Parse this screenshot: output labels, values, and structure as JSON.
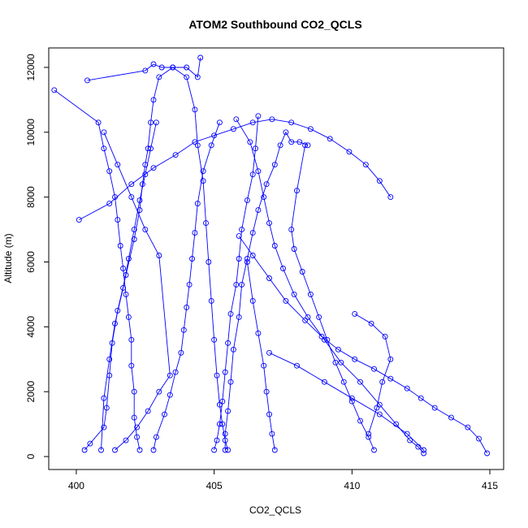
{
  "chart_data": {
    "type": "line",
    "title": "ATOM2 Southbound CO2_QCLS",
    "xlabel": "CO2_QCLS",
    "ylabel": "Altitude (m)",
    "xlim": [
      399,
      415.5
    ],
    "ylim": [
      -400,
      12600
    ],
    "x_ticks": [
      400,
      405,
      410,
      415
    ],
    "y_ticks": [
      0,
      2000,
      4000,
      6000,
      8000,
      10000,
      12000
    ],
    "markers": "open-circle",
    "color": "#0000ff",
    "series": [
      {
        "x": [
          400.3,
          400.5,
          401.0,
          401.1,
          401.2,
          401.3,
          401.5,
          401.8,
          402.1,
          402.3,
          402.4,
          402.5,
          402.6,
          402.7,
          402.8,
          403.0,
          403.5,
          404.0,
          404.4,
          404.5
        ],
        "y": [
          200,
          400,
          900,
          1500,
          2500,
          3500,
          4500,
          5600,
          6700,
          7600,
          8400,
          9000,
          9500,
          10300,
          11000,
          11700,
          12000,
          12000,
          11700,
          12300
        ]
      },
      {
        "x": [
          399.2,
          400.8,
          401.0,
          401.2,
          401.4,
          401.5,
          401.6,
          401.7,
          401.8,
          401.9,
          402.0,
          402.0,
          402.1,
          402.1,
          402.2,
          402.3
        ],
        "y": [
          11300,
          10300,
          9500,
          8800,
          8000,
          7300,
          6500,
          5800,
          5000,
          4300,
          3600,
          2800,
          2000,
          1200,
          600,
          200
        ]
      },
      {
        "x": [
          400.4,
          402.5,
          402.8,
          403.1,
          403.5,
          404.0,
          404.3,
          404.4,
          404.6,
          404.7,
          404.8,
          404.9,
          405.0,
          405.1,
          405.2,
          405.3,
          405.4,
          405.5
        ],
        "y": [
          11600,
          11900,
          12100,
          12000,
          12000,
          11700,
          10700,
          9600,
          8500,
          7200,
          6000,
          4800,
          3600,
          2500,
          1600,
          1000,
          500,
          200
        ]
      },
      {
        "x": [
          405.4,
          405.4,
          405.5,
          405.6,
          405.7,
          405.9,
          406.0,
          406.2,
          406.4,
          406.6,
          406.9,
          407.2,
          407.4,
          407.6,
          407.8,
          408.1,
          408.4
        ],
        "y": [
          200,
          700,
          1400,
          2300,
          3300,
          4300,
          5300,
          6100,
          6900,
          7600,
          8400,
          9000,
          9600,
          10000,
          9700,
          9700,
          9600
        ]
      },
      {
        "x": [
          408.3,
          408.0,
          407.8,
          407.9,
          408.2,
          408.5,
          408.8,
          409.1,
          409.4,
          409.7,
          410.0,
          410.3,
          410.6,
          410.8
        ],
        "y": [
          9600,
          8200,
          7000,
          6400,
          5700,
          5000,
          4300,
          3600,
          2900,
          2300,
          1700,
          1100,
          600,
          200
        ]
      },
      {
        "x": [
          405.8,
          406.3,
          406.6,
          406.8,
          407.0,
          407.2,
          407.5,
          407.9,
          408.4,
          409.0,
          409.6,
          410.3,
          411.0,
          411.6,
          412.1,
          412.4,
          412.6
        ],
        "y": [
          10400,
          9700,
          8800,
          8000,
          7200,
          6500,
          5800,
          5000,
          4300,
          3600,
          2900,
          2300,
          1600,
          1000,
          500,
          300,
          100
        ]
      },
      {
        "x": [
          406.6,
          406.5,
          406.4,
          406.2,
          406.0,
          405.9,
          405.8,
          405.6,
          405.5,
          405.4,
          405.3,
          405.2,
          405.1,
          405.0
        ],
        "y": [
          10500,
          9500,
          8700,
          7900,
          7000,
          6100,
          5300,
          4400,
          3500,
          2600,
          1700,
          1000,
          500,
          200
        ]
      },
      {
        "x": [
          405.2,
          404.9,
          404.6,
          404.4,
          404.3,
          404.2,
          404.1,
          404.0,
          403.9,
          403.8,
          403.6,
          403.4,
          403.2,
          402.9,
          402.8
        ],
        "y": [
          10300,
          9600,
          8800,
          7800,
          6900,
          6100,
          5300,
          4600,
          3900,
          3200,
          2600,
          1900,
          1300,
          600,
          200
        ]
      },
      {
        "x": [
          414.9,
          414.6,
          414.2,
          413.6,
          413.0,
          412.5,
          412.0,
          411.4,
          410.8,
          410.1,
          409.5,
          408.9,
          408.3,
          407.6,
          407.0,
          406.4,
          405.9
        ],
        "y": [
          100,
          550,
          900,
          1200,
          1500,
          1800,
          2100,
          2400,
          2700,
          3000,
          3300,
          3700,
          4200,
          4800,
          5500,
          6200,
          6800
        ]
      },
      {
        "x": [
          400.1,
          401.2,
          402.0,
          402.8,
          403.6,
          404.3,
          405.0,
          405.7,
          406.4,
          407.1,
          407.8,
          408.5,
          409.2,
          409.9,
          410.5,
          411.0,
          411.4
        ],
        "y": [
          7300,
          7800,
          8400,
          8900,
          9300,
          9700,
          9900,
          10100,
          10300,
          10400,
          10300,
          10100,
          9800,
          9400,
          9000,
          8500,
          8000
        ]
      },
      {
        "x": [
          407.0,
          408.0,
          409.0,
          410.0,
          411.0,
          412.0,
          412.6
        ],
        "y": [
          3200,
          2800,
          2300,
          1800,
          1300,
          700,
          200
        ]
      },
      {
        "x": [
          410.1,
          410.7,
          411.2,
          411.4,
          411.1,
          410.9,
          410.6
        ],
        "y": [
          4400,
          4100,
          3700,
          3000,
          2300,
          1500,
          700
        ]
      },
      {
        "x": [
          406.2,
          406.4,
          406.6,
          406.8,
          406.9,
          407.0,
          407.1,
          407.2
        ],
        "y": [
          6000,
          4800,
          3800,
          2800,
          2000,
          1300,
          700,
          200
        ]
      },
      {
        "x": [
          402.9,
          402.7,
          402.5,
          402.3,
          402.1,
          401.9,
          401.7,
          401.4,
          401.2,
          401.0,
          400.9
        ],
        "y": [
          10300,
          9500,
          8700,
          7900,
          7000,
          6100,
          5200,
          4100,
          3000,
          1800,
          200
        ]
      },
      {
        "x": [
          401.0,
          401.5,
          402.0,
          402.5,
          403.0,
          403.4,
          403.0,
          402.6,
          402.2,
          401.8,
          401.4
        ],
        "y": [
          10000,
          9000,
          8000,
          7000,
          6200,
          2500,
          2000,
          1400,
          900,
          500,
          200
        ]
      }
    ]
  }
}
